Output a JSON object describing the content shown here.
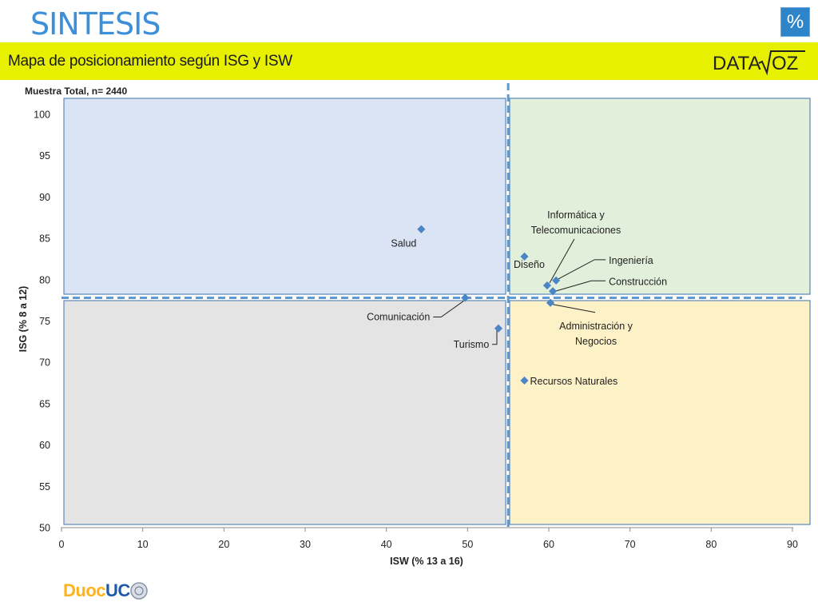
{
  "header": {
    "title": "SINTESIS",
    "badge": "%",
    "subtitle": "Mapa de posicionamiento según ISG y ISW",
    "brand": "DATA-VOZ"
  },
  "footer": {
    "logo_left": "Duoc",
    "logo_right": "UC"
  },
  "colors": {
    "title": "#3c8fd8",
    "banner": "#e6f000",
    "badge": "#2e84c8",
    "marker": "#4a86c5",
    "quadrant_top_left": "#dbe4f4",
    "quadrant_top_right": "#e2efda",
    "quadrant_bottom_left": "#e4e4e4",
    "quadrant_bottom_right": "#fdf1c8",
    "divider": "#5b9bd5"
  },
  "chart_data": {
    "type": "scatter",
    "sample_label": "Muestra Total, n= 2440",
    "xlabel": "ISW (% 13 a 16)",
    "ylabel": "ISG (% 8 a 12)",
    "xlim": [
      0,
      90
    ],
    "ylim": [
      50,
      100
    ],
    "xticks": [
      0,
      10,
      20,
      30,
      40,
      50,
      60,
      70,
      80,
      90
    ],
    "yticks": [
      50,
      55,
      60,
      65,
      70,
      75,
      80,
      85,
      90,
      95,
      100
    ],
    "grid": false,
    "reference_lines": {
      "x": 55,
      "y": 77.8
    },
    "points": [
      {
        "name": "Salud",
        "x": 44.3,
        "y": 86.1
      },
      {
        "name": "Diseño",
        "x": 57.0,
        "y": 82.8
      },
      {
        "name": "Informática y Telecomunicaciones",
        "x": 59.8,
        "y": 79.3
      },
      {
        "name": "Ingeniería",
        "x": 60.9,
        "y": 79.9
      },
      {
        "name": "Construcción",
        "x": 60.5,
        "y": 78.6
      },
      {
        "name": "Comunicación",
        "x": 49.7,
        "y": 77.8
      },
      {
        "name": "Administración y Negocios",
        "x": 60.2,
        "y": 77.2
      },
      {
        "name": "Turismo",
        "x": 53.8,
        "y": 74.1
      },
      {
        "name": "Recursos Naturales",
        "x": 57.0,
        "y": 67.8
      }
    ]
  }
}
